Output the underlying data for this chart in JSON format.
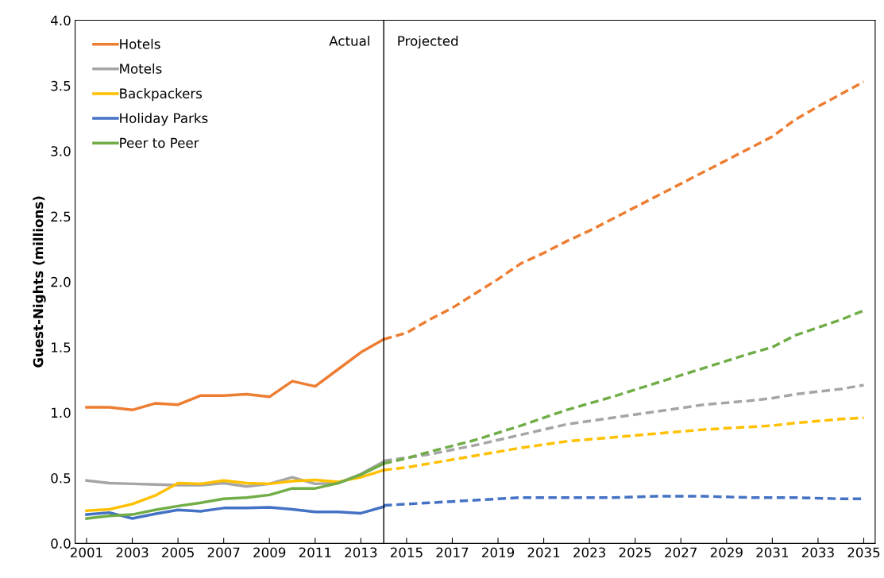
{
  "chart_data": {
    "type": "line",
    "ylabel": "Guest-Nights (millions)",
    "xlim": [
      2000.5,
      2035.5
    ],
    "xticks": [
      2001,
      2003,
      2005,
      2007,
      2009,
      2011,
      2013,
      2015,
      2017,
      2019,
      2021,
      2023,
      2025,
      2027,
      2029,
      2031,
      2033,
      2035
    ],
    "ylim": [
      0,
      4
    ],
    "yticks": [
      {
        "value": 0,
        "label": "0.0"
      },
      {
        "value": 0.5,
        "label": "0.5"
      },
      {
        "value": 1,
        "label": "1.0"
      },
      {
        "value": 1.5,
        "label": "1.5"
      },
      {
        "value": 2,
        "label": "2.0"
      },
      {
        "value": 2.5,
        "label": "2.5"
      },
      {
        "value": 3,
        "label": "3.0"
      },
      {
        "value": 3.5,
        "label": "3.5"
      },
      {
        "value": 4,
        "label": "4.0"
      }
    ],
    "grid": false,
    "legend": "top left",
    "marker": "none",
    "ref_lines": [
      {
        "axis": "x",
        "value": 2014,
        "color": "#000000",
        "line_style": "solid"
      }
    ],
    "annotations": [
      "Actual",
      "Projected"
    ],
    "series": [
      {
        "name": "Hotels",
        "color": "#ed7d31",
        "line_style": "solid",
        "x": [
          2001,
          2002,
          2003,
          2004,
          2005,
          2006,
          2007,
          2008,
          2009,
          2010,
          2011,
          2012,
          2013,
          2014
        ],
        "values": [
          1.04,
          1.04,
          1.02,
          1.07,
          1.06,
          1.13,
          1.13,
          1.14,
          1.12,
          1.24,
          1.2,
          1.33,
          1.46,
          1.56
        ]
      },
      {
        "name": "Motels",
        "color": "#a5a5a5",
        "line_style": "solid",
        "x": [
          2001,
          2002,
          2003,
          2004,
          2005,
          2006,
          2007,
          2008,
          2009,
          2010,
          2011,
          2012,
          2013,
          2014
        ],
        "values": [
          0.48,
          0.46,
          0.455,
          0.45,
          0.445,
          0.445,
          0.46,
          0.435,
          0.455,
          0.505,
          0.455,
          0.46,
          0.53,
          0.625
        ]
      },
      {
        "name": "Backpackers",
        "color": "#ffc000",
        "line_style": "solid",
        "x": [
          2001,
          2002,
          2003,
          2004,
          2005,
          2006,
          2007,
          2008,
          2009,
          2010,
          2011,
          2012,
          2013,
          2014
        ],
        "values": [
          0.25,
          0.26,
          0.3,
          0.365,
          0.46,
          0.455,
          0.48,
          0.46,
          0.455,
          0.475,
          0.485,
          0.47,
          0.505,
          0.56
        ]
      },
      {
        "name": "Holiday Parks",
        "color": "#4472c4",
        "line_style": "solid",
        "x": [
          2001,
          2002,
          2003,
          2004,
          2005,
          2006,
          2007,
          2008,
          2009,
          2010,
          2011,
          2012,
          2013,
          2014
        ],
        "values": [
          0.22,
          0.235,
          0.19,
          0.225,
          0.255,
          0.245,
          0.27,
          0.27,
          0.275,
          0.26,
          0.24,
          0.24,
          0.23,
          0.28
        ]
      },
      {
        "name": "Peer to Peer",
        "color": "#70ad47",
        "line_style": "solid",
        "x": [
          2001,
          2002,
          2003,
          2004,
          2005,
          2006,
          2007,
          2008,
          2009,
          2010,
          2011,
          2012,
          2013,
          2014
        ],
        "values": [
          0.19,
          0.21,
          0.22,
          0.255,
          0.285,
          0.31,
          0.34,
          0.35,
          0.37,
          0.42,
          0.42,
          0.46,
          0.525,
          0.61
        ]
      },
      {
        "color": "#ed7d31",
        "line_style": "dashed",
        "x": [
          2014,
          2015,
          2016,
          2017,
          2018,
          2019,
          2020,
          2021,
          2022,
          2023,
          2025,
          2027,
          2029,
          2031,
          2032,
          2033,
          2035
        ],
        "values": [
          1.56,
          1.61,
          1.71,
          1.8,
          1.91,
          2.02,
          2.14,
          2.22,
          2.31,
          2.39,
          2.57,
          2.75,
          2.93,
          3.11,
          3.24,
          3.34,
          3.53
        ]
      },
      {
        "color": "#a5a5a5",
        "line_style": "dashed",
        "x": [
          2014,
          2016,
          2018,
          2020,
          2022,
          2024,
          2026,
          2028,
          2030,
          2031,
          2032,
          2034,
          2035
        ],
        "values": [
          0.63,
          0.68,
          0.75,
          0.83,
          0.91,
          0.96,
          1.01,
          1.06,
          1.09,
          1.11,
          1.14,
          1.18,
          1.21
        ]
      },
      {
        "color": "#ffc000",
        "line_style": "dashed",
        "x": [
          2014,
          2015,
          2016,
          2018,
          2020,
          2022,
          2024,
          2026,
          2028,
          2030,
          2031,
          2032,
          2034,
          2035
        ],
        "values": [
          0.56,
          0.58,
          0.61,
          0.67,
          0.73,
          0.78,
          0.81,
          0.84,
          0.87,
          0.89,
          0.9,
          0.92,
          0.95,
          0.96
        ]
      },
      {
        "color": "#4472c4",
        "line_style": "dashed",
        "x": [
          2014,
          2016,
          2018,
          2020,
          2022,
          2024,
          2026,
          2028,
          2030,
          2032,
          2034,
          2035
        ],
        "values": [
          0.29,
          0.31,
          0.33,
          0.35,
          0.35,
          0.35,
          0.36,
          0.36,
          0.35,
          0.35,
          0.34,
          0.34
        ]
      },
      {
        "color": "#70ad47",
        "line_style": "dashed",
        "x": [
          2014,
          2015,
          2016,
          2018,
          2020,
          2022,
          2024,
          2026,
          2028,
          2030,
          2031,
          2032,
          2034,
          2035
        ],
        "values": [
          0.61,
          0.65,
          0.7,
          0.79,
          0.9,
          1.02,
          1.12,
          1.23,
          1.34,
          1.45,
          1.5,
          1.59,
          1.71,
          1.78
        ]
      }
    ]
  }
}
